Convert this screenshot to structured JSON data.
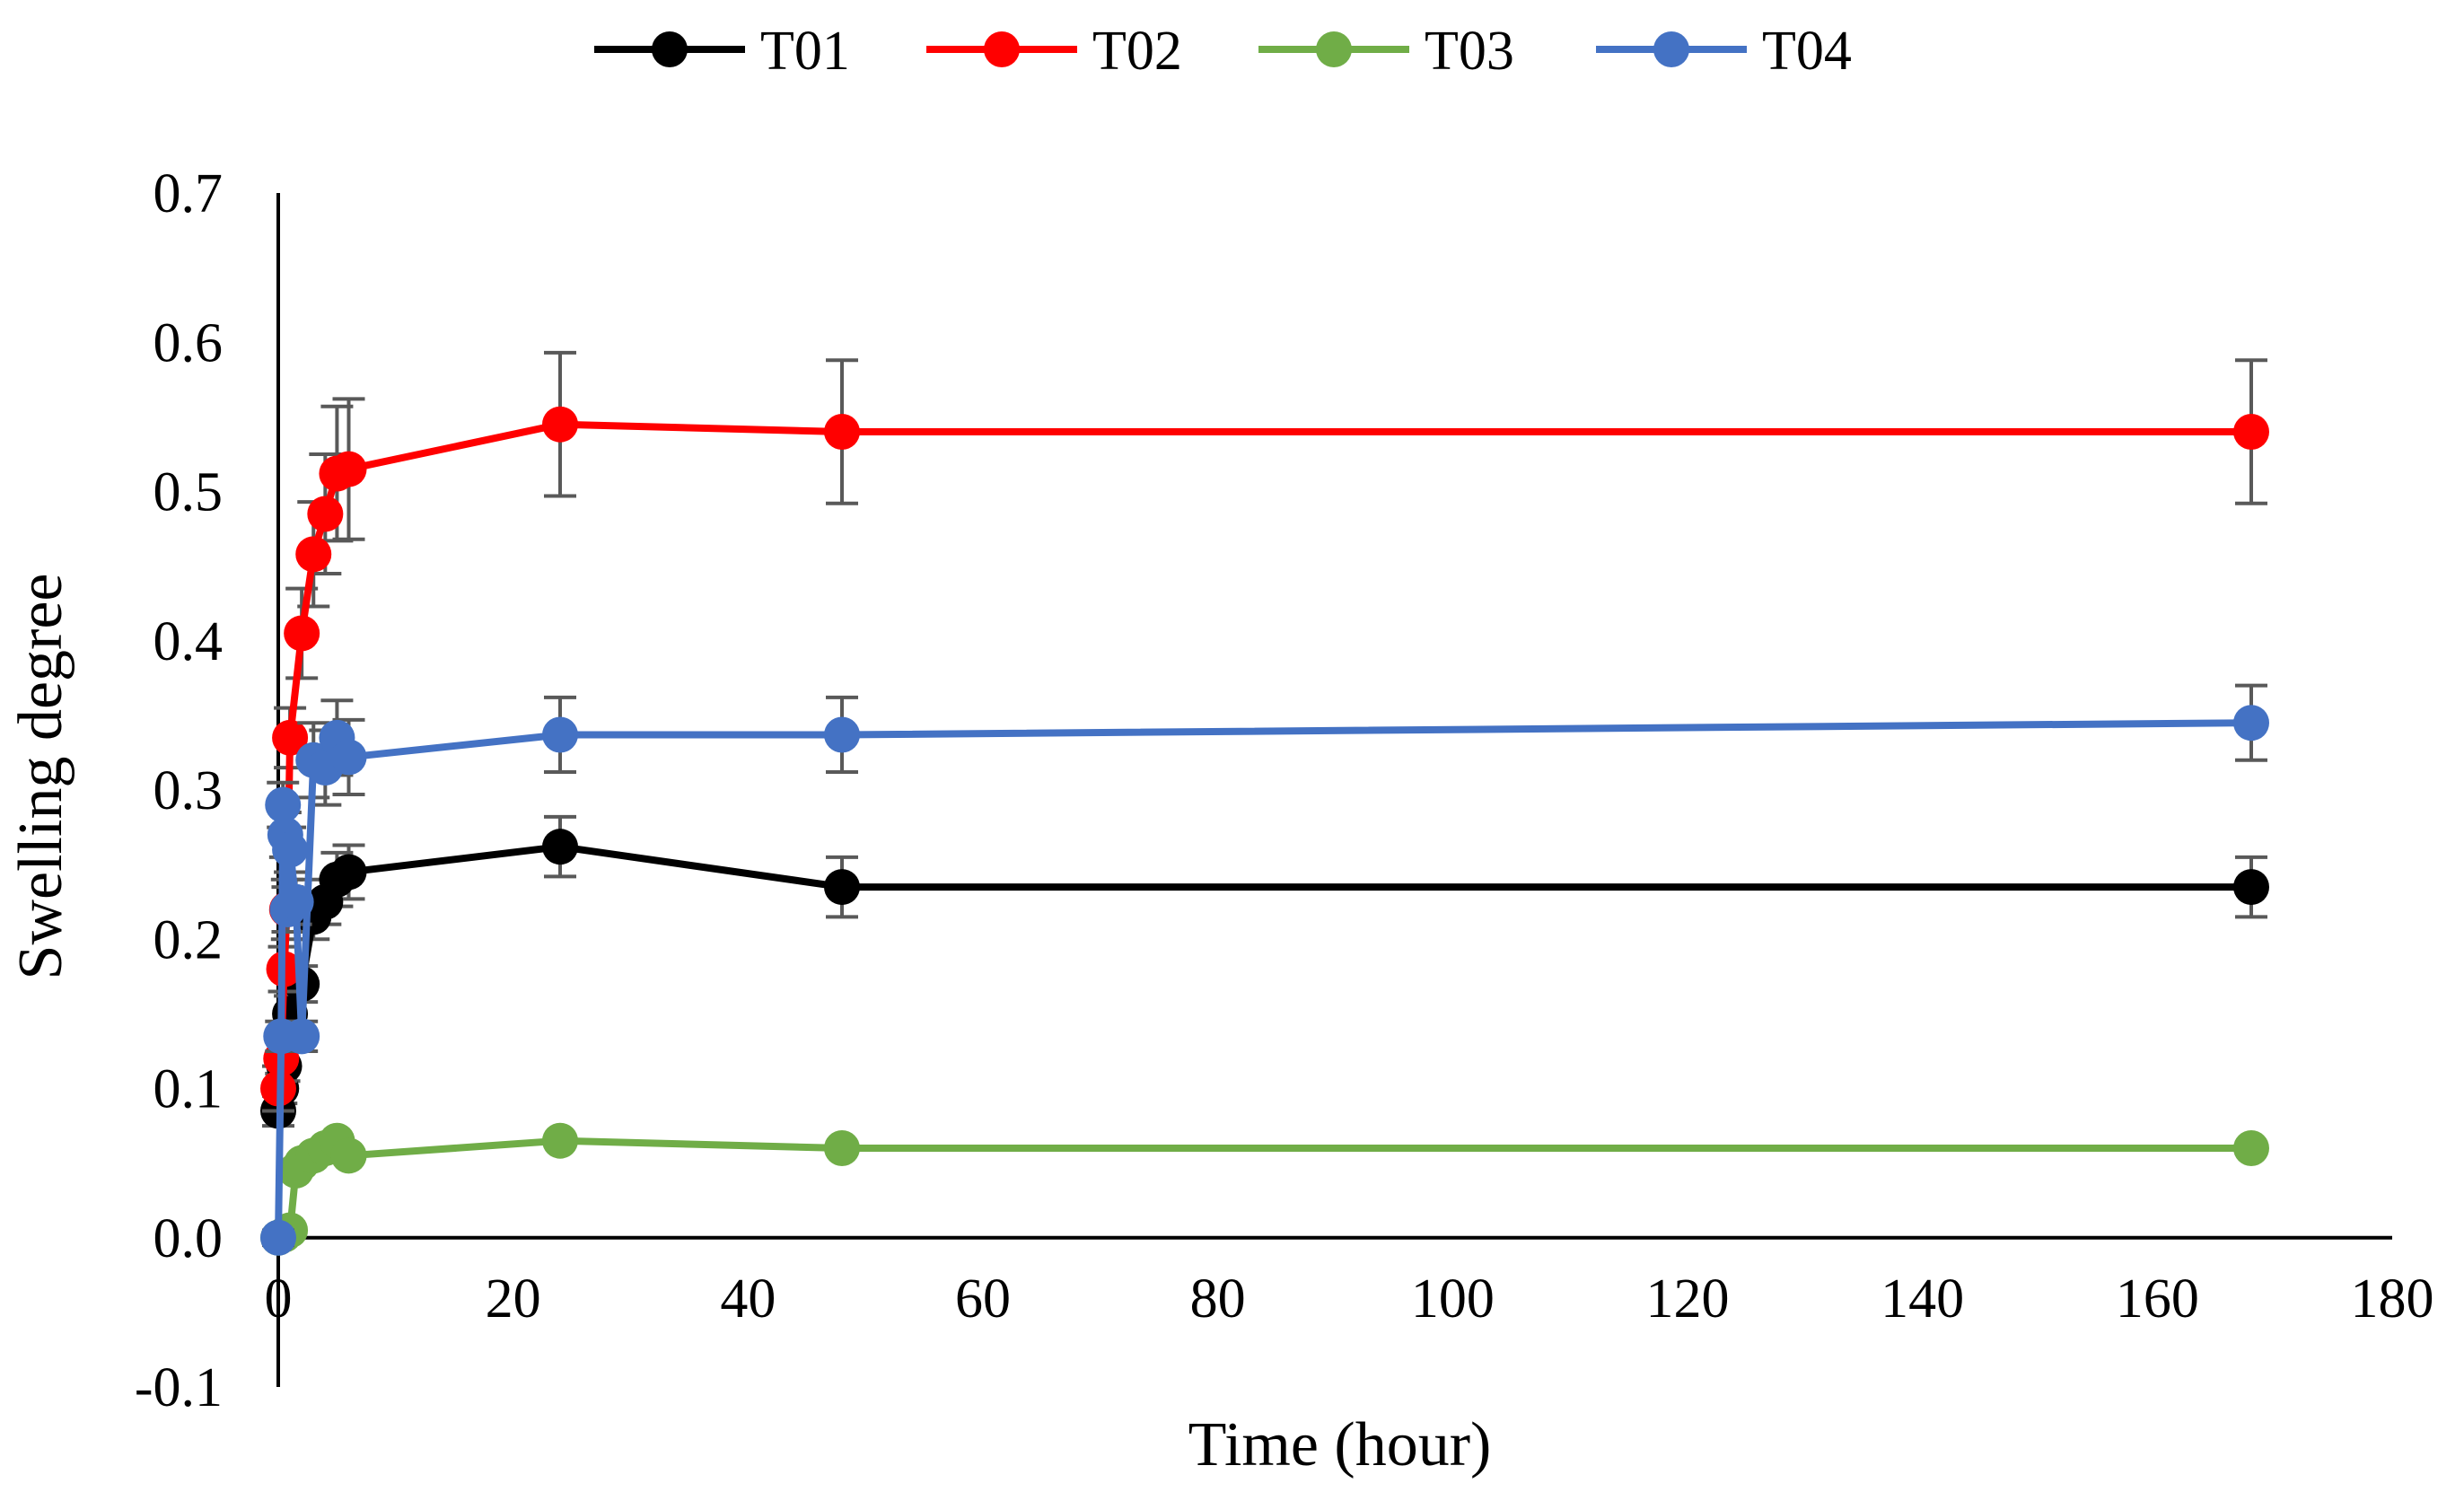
{
  "chart_data": {
    "type": "line",
    "title": "",
    "xlabel": "Time (hour)",
    "ylabel": "Swelling degree",
    "xlim": [
      0,
      180
    ],
    "ylim": [
      -0.1,
      0.7
    ],
    "x_ticks": [
      0,
      20,
      40,
      60,
      80,
      100,
      120,
      140,
      160,
      180
    ],
    "y_ticks": [
      -0.1,
      0.0,
      0.1,
      0.2,
      0.3,
      0.4,
      0.5,
      0.6,
      0.7
    ],
    "y_tick_labels": [
      "-0.1",
      "0.0",
      "0.1",
      "0.2",
      "0.3",
      "0.4",
      "0.5",
      "0.6",
      "0.7"
    ],
    "x_tick_labels": [
      "0",
      "20",
      "40",
      "60",
      "80",
      "100",
      "120",
      "140",
      "160",
      "180"
    ],
    "legend_position": "top",
    "grid": false,
    "series": [
      {
        "name": "T01",
        "color": "#000000",
        "points": [
          {
            "x": 0,
            "y": 0.085,
            "err": 0.01
          },
          {
            "x": 0.25,
            "y": 0.1,
            "err": 0.01
          },
          {
            "x": 0.5,
            "y": 0.115,
            "err": 0.01
          },
          {
            "x": 1,
            "y": 0.15,
            "err": 0.012
          },
          {
            "x": 2,
            "y": 0.17,
            "err": 0.012
          },
          {
            "x": 3,
            "y": 0.215,
            "err": 0.015
          },
          {
            "x": 4,
            "y": 0.225,
            "err": 0.015
          },
          {
            "x": 5,
            "y": 0.24,
            "err": 0.018
          },
          {
            "x": 6,
            "y": 0.245,
            "err": 0.018
          },
          {
            "x": 24,
            "y": 0.262,
            "err": 0.02
          },
          {
            "x": 48,
            "y": 0.235,
            "err": 0.02
          },
          {
            "x": 168,
            "y": 0.235,
            "err": 0.02
          }
        ]
      },
      {
        "name": "T02",
        "color": "#ff0000",
        "points": [
          {
            "x": 0,
            "y": 0.1,
            "err": 0.015
          },
          {
            "x": 0.25,
            "y": 0.12,
            "err": 0.015
          },
          {
            "x": 0.5,
            "y": 0.18,
            "err": 0.015
          },
          {
            "x": 0.75,
            "y": 0.22,
            "err": 0.02
          },
          {
            "x": 1,
            "y": 0.335,
            "err": 0.02
          },
          {
            "x": 2,
            "y": 0.405,
            "err": 0.03
          },
          {
            "x": 3,
            "y": 0.458,
            "err": 0.035
          },
          {
            "x": 4,
            "y": 0.485,
            "err": 0.04
          },
          {
            "x": 5,
            "y": 0.512,
            "err": 0.045
          },
          {
            "x": 6,
            "y": 0.515,
            "err": 0.047
          },
          {
            "x": 24,
            "y": 0.545,
            "err": 0.048
          },
          {
            "x": 48,
            "y": 0.54,
            "err": 0.048
          },
          {
            "x": 168,
            "y": 0.54,
            "err": 0.048
          }
        ]
      },
      {
        "name": "T03",
        "color": "#70ad47",
        "points": [
          {
            "x": 0,
            "y": 0.0,
            "err": 0.003
          },
          {
            "x": 0.5,
            "y": 0.002,
            "err": 0.003
          },
          {
            "x": 1,
            "y": 0.005,
            "err": 0.003
          },
          {
            "x": 1.5,
            "y": 0.045,
            "err": 0.004
          },
          {
            "x": 2,
            "y": 0.05,
            "err": 0.004
          },
          {
            "x": 3,
            "y": 0.055,
            "err": 0.004
          },
          {
            "x": 4,
            "y": 0.06,
            "err": 0.004
          },
          {
            "x": 5,
            "y": 0.065,
            "err": 0.004
          },
          {
            "x": 6,
            "y": 0.055,
            "err": 0.004
          },
          {
            "x": 24,
            "y": 0.065,
            "err": 0.004
          },
          {
            "x": 48,
            "y": 0.06,
            "err": 0.004
          },
          {
            "x": 168,
            "y": 0.06,
            "err": 0.004
          }
        ]
      },
      {
        "name": "T04",
        "color": "#4472c4",
        "points": [
          {
            "x": 0,
            "y": 0.0,
            "err": 0.005
          },
          {
            "x": 0.25,
            "y": 0.135,
            "err": 0.01
          },
          {
            "x": 0.4,
            "y": 0.29,
            "err": 0.015
          },
          {
            "x": 0.6,
            "y": 0.27,
            "err": 0.015
          },
          {
            "x": 0.8,
            "y": 0.22,
            "err": 0.015
          },
          {
            "x": 1,
            "y": 0.26,
            "err": 0.015
          },
          {
            "x": 1.5,
            "y": 0.225,
            "err": 0.015
          },
          {
            "x": 2,
            "y": 0.135,
            "err": 0.01
          },
          {
            "x": 3,
            "y": 0.32,
            "err": 0.025
          },
          {
            "x": 4,
            "y": 0.315,
            "err": 0.025
          },
          {
            "x": 5,
            "y": 0.335,
            "err": 0.025
          },
          {
            "x": 6,
            "y": 0.322,
            "err": 0.025
          },
          {
            "x": 24,
            "y": 0.337,
            "err": 0.025
          },
          {
            "x": 48,
            "y": 0.337,
            "err": 0.025
          },
          {
            "x": 168,
            "y": 0.345,
            "err": 0.025
          }
        ]
      }
    ]
  }
}
